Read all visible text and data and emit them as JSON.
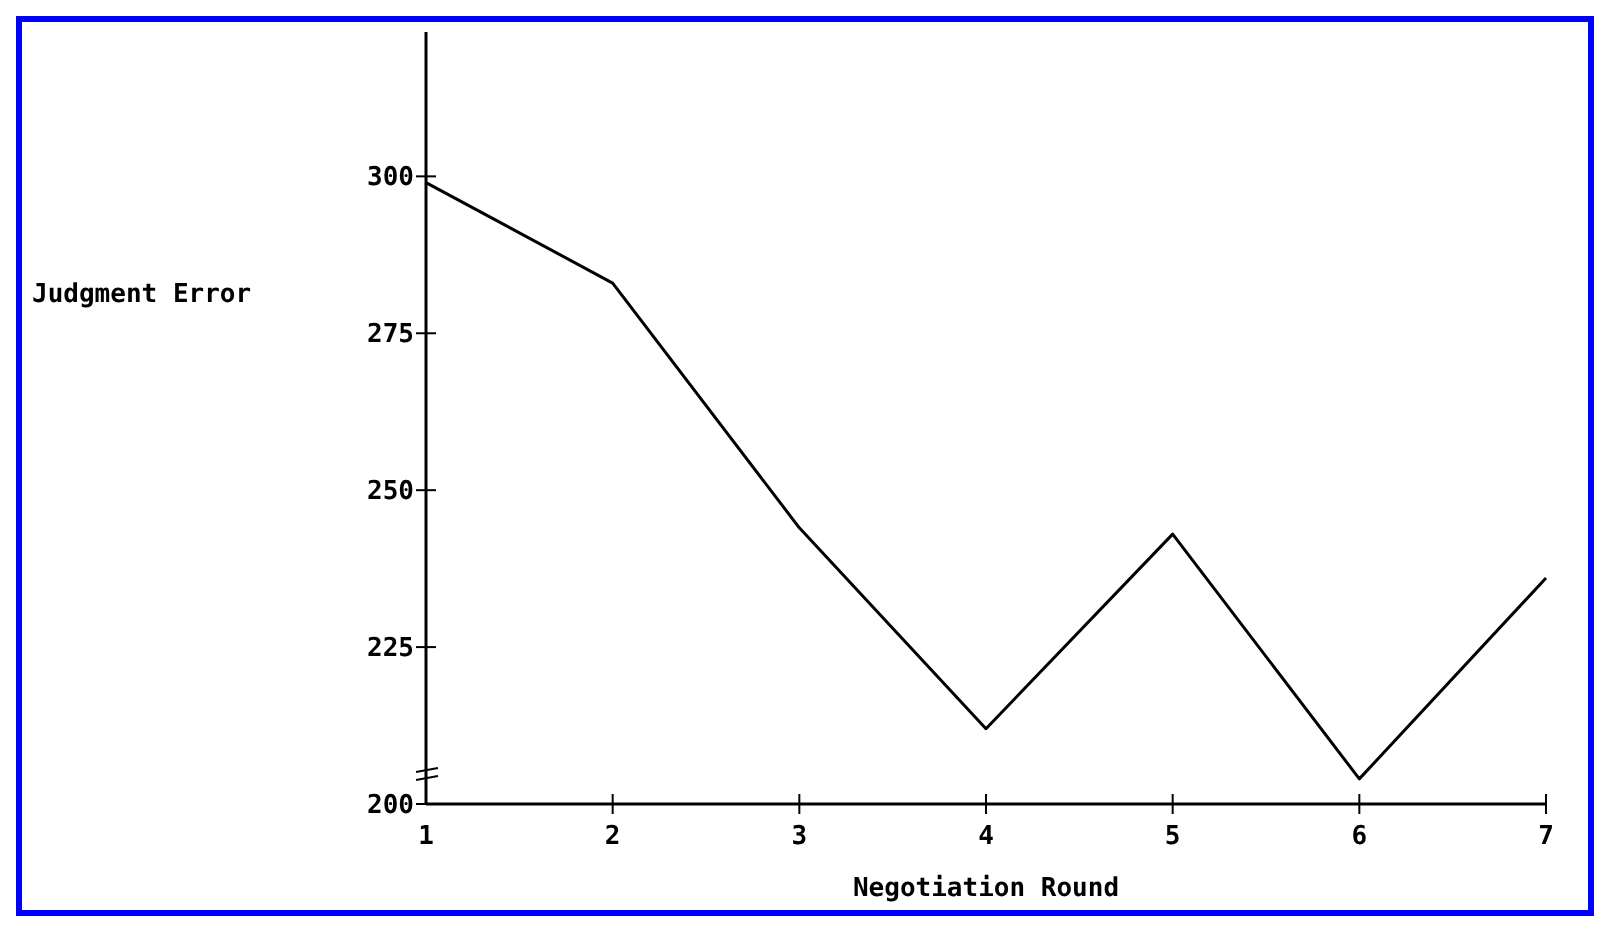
{
  "chart_data": {
    "type": "line",
    "xlabel": "Negotiation Round",
    "ylabel": "Judgment Error",
    "x": [
      1,
      2,
      3,
      4,
      5,
      6,
      7
    ],
    "series": [
      {
        "color": "#000000",
        "values": [
          299,
          283,
          244,
          212,
          243,
          204,
          236
        ]
      }
    ],
    "xlim": [
      1,
      7
    ],
    "xticks": [
      1,
      2,
      3,
      4,
      5,
      6,
      7
    ],
    "ylim": [
      200,
      323
    ],
    "yticks": [
      200,
      225,
      250,
      275,
      300
    ],
    "grid": false,
    "marker": "none",
    "line_style": "solid"
  }
}
